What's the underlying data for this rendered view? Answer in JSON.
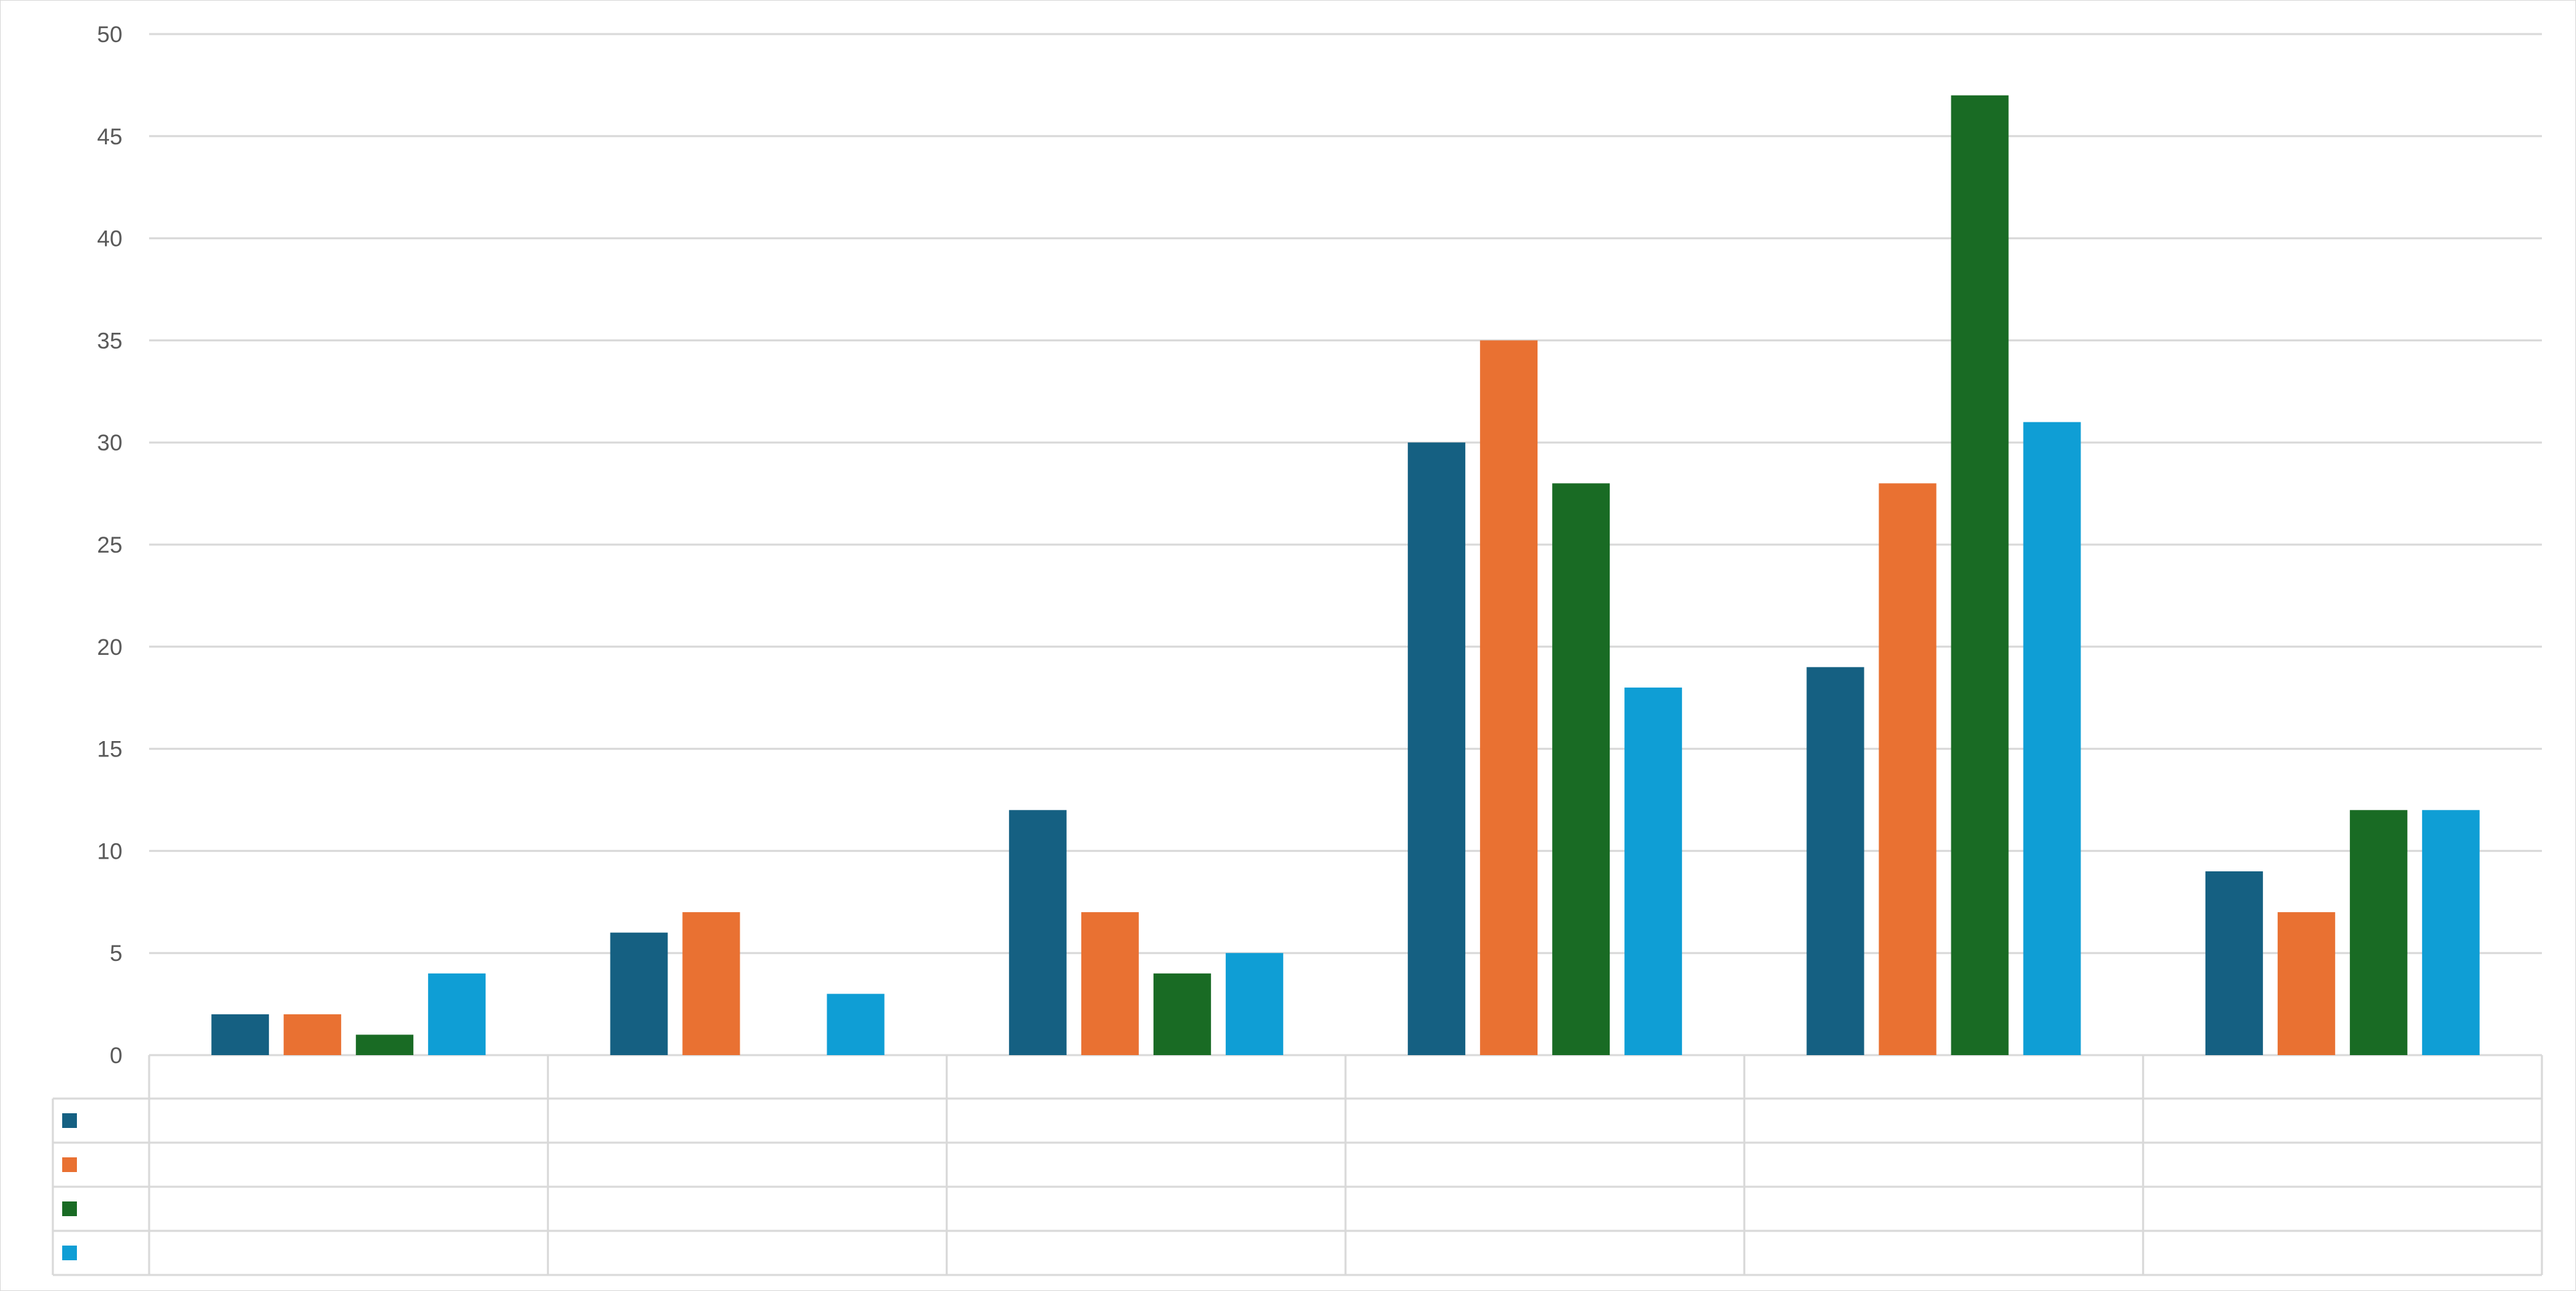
{
  "chart_data": {
    "type": "bar",
    "title": "",
    "xlabel": "",
    "ylabel": "",
    "categories": [
      "",
      "",
      "",
      "",
      "",
      ""
    ],
    "series": [
      {
        "values": [
          2,
          6,
          12,
          30,
          19,
          9
        ],
        "color": "#156082"
      },
      {
        "values": [
          2,
          7,
          7,
          35,
          28,
          7
        ],
        "color": "#E97132"
      },
      {
        "values": [
          1,
          0,
          4,
          28,
          47,
          12
        ],
        "color": "#196B24"
      },
      {
        "values": [
          4,
          3,
          5,
          18,
          31,
          12
        ],
        "color": "#0F9ED5"
      }
    ],
    "ylim": [
      0,
      50
    ],
    "yticks": [
      0,
      5,
      10,
      15,
      20,
      25,
      30,
      35,
      40,
      45,
      50
    ],
    "grid": true,
    "legend": "data-table",
    "colors": {
      "gridline": "#D9D9D9",
      "tick_text": "#595959",
      "frame_border": "#D9D9D9"
    }
  }
}
